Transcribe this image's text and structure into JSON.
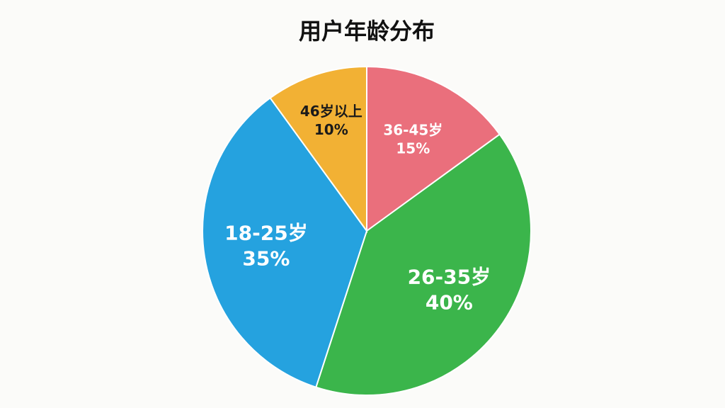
{
  "chart_data": {
    "type": "pie",
    "title": "用户年龄分布",
    "categories": [
      "36-45岁",
      "26-35岁",
      "18-25岁",
      "46岁以上"
    ],
    "values": [
      15,
      40,
      35,
      10
    ],
    "value_labels": [
      "15%",
      "40%",
      "35%",
      "10%"
    ],
    "colors": [
      "#ea6f7c",
      "#3bb54b",
      "#25a2df",
      "#f2b134"
    ]
  }
}
